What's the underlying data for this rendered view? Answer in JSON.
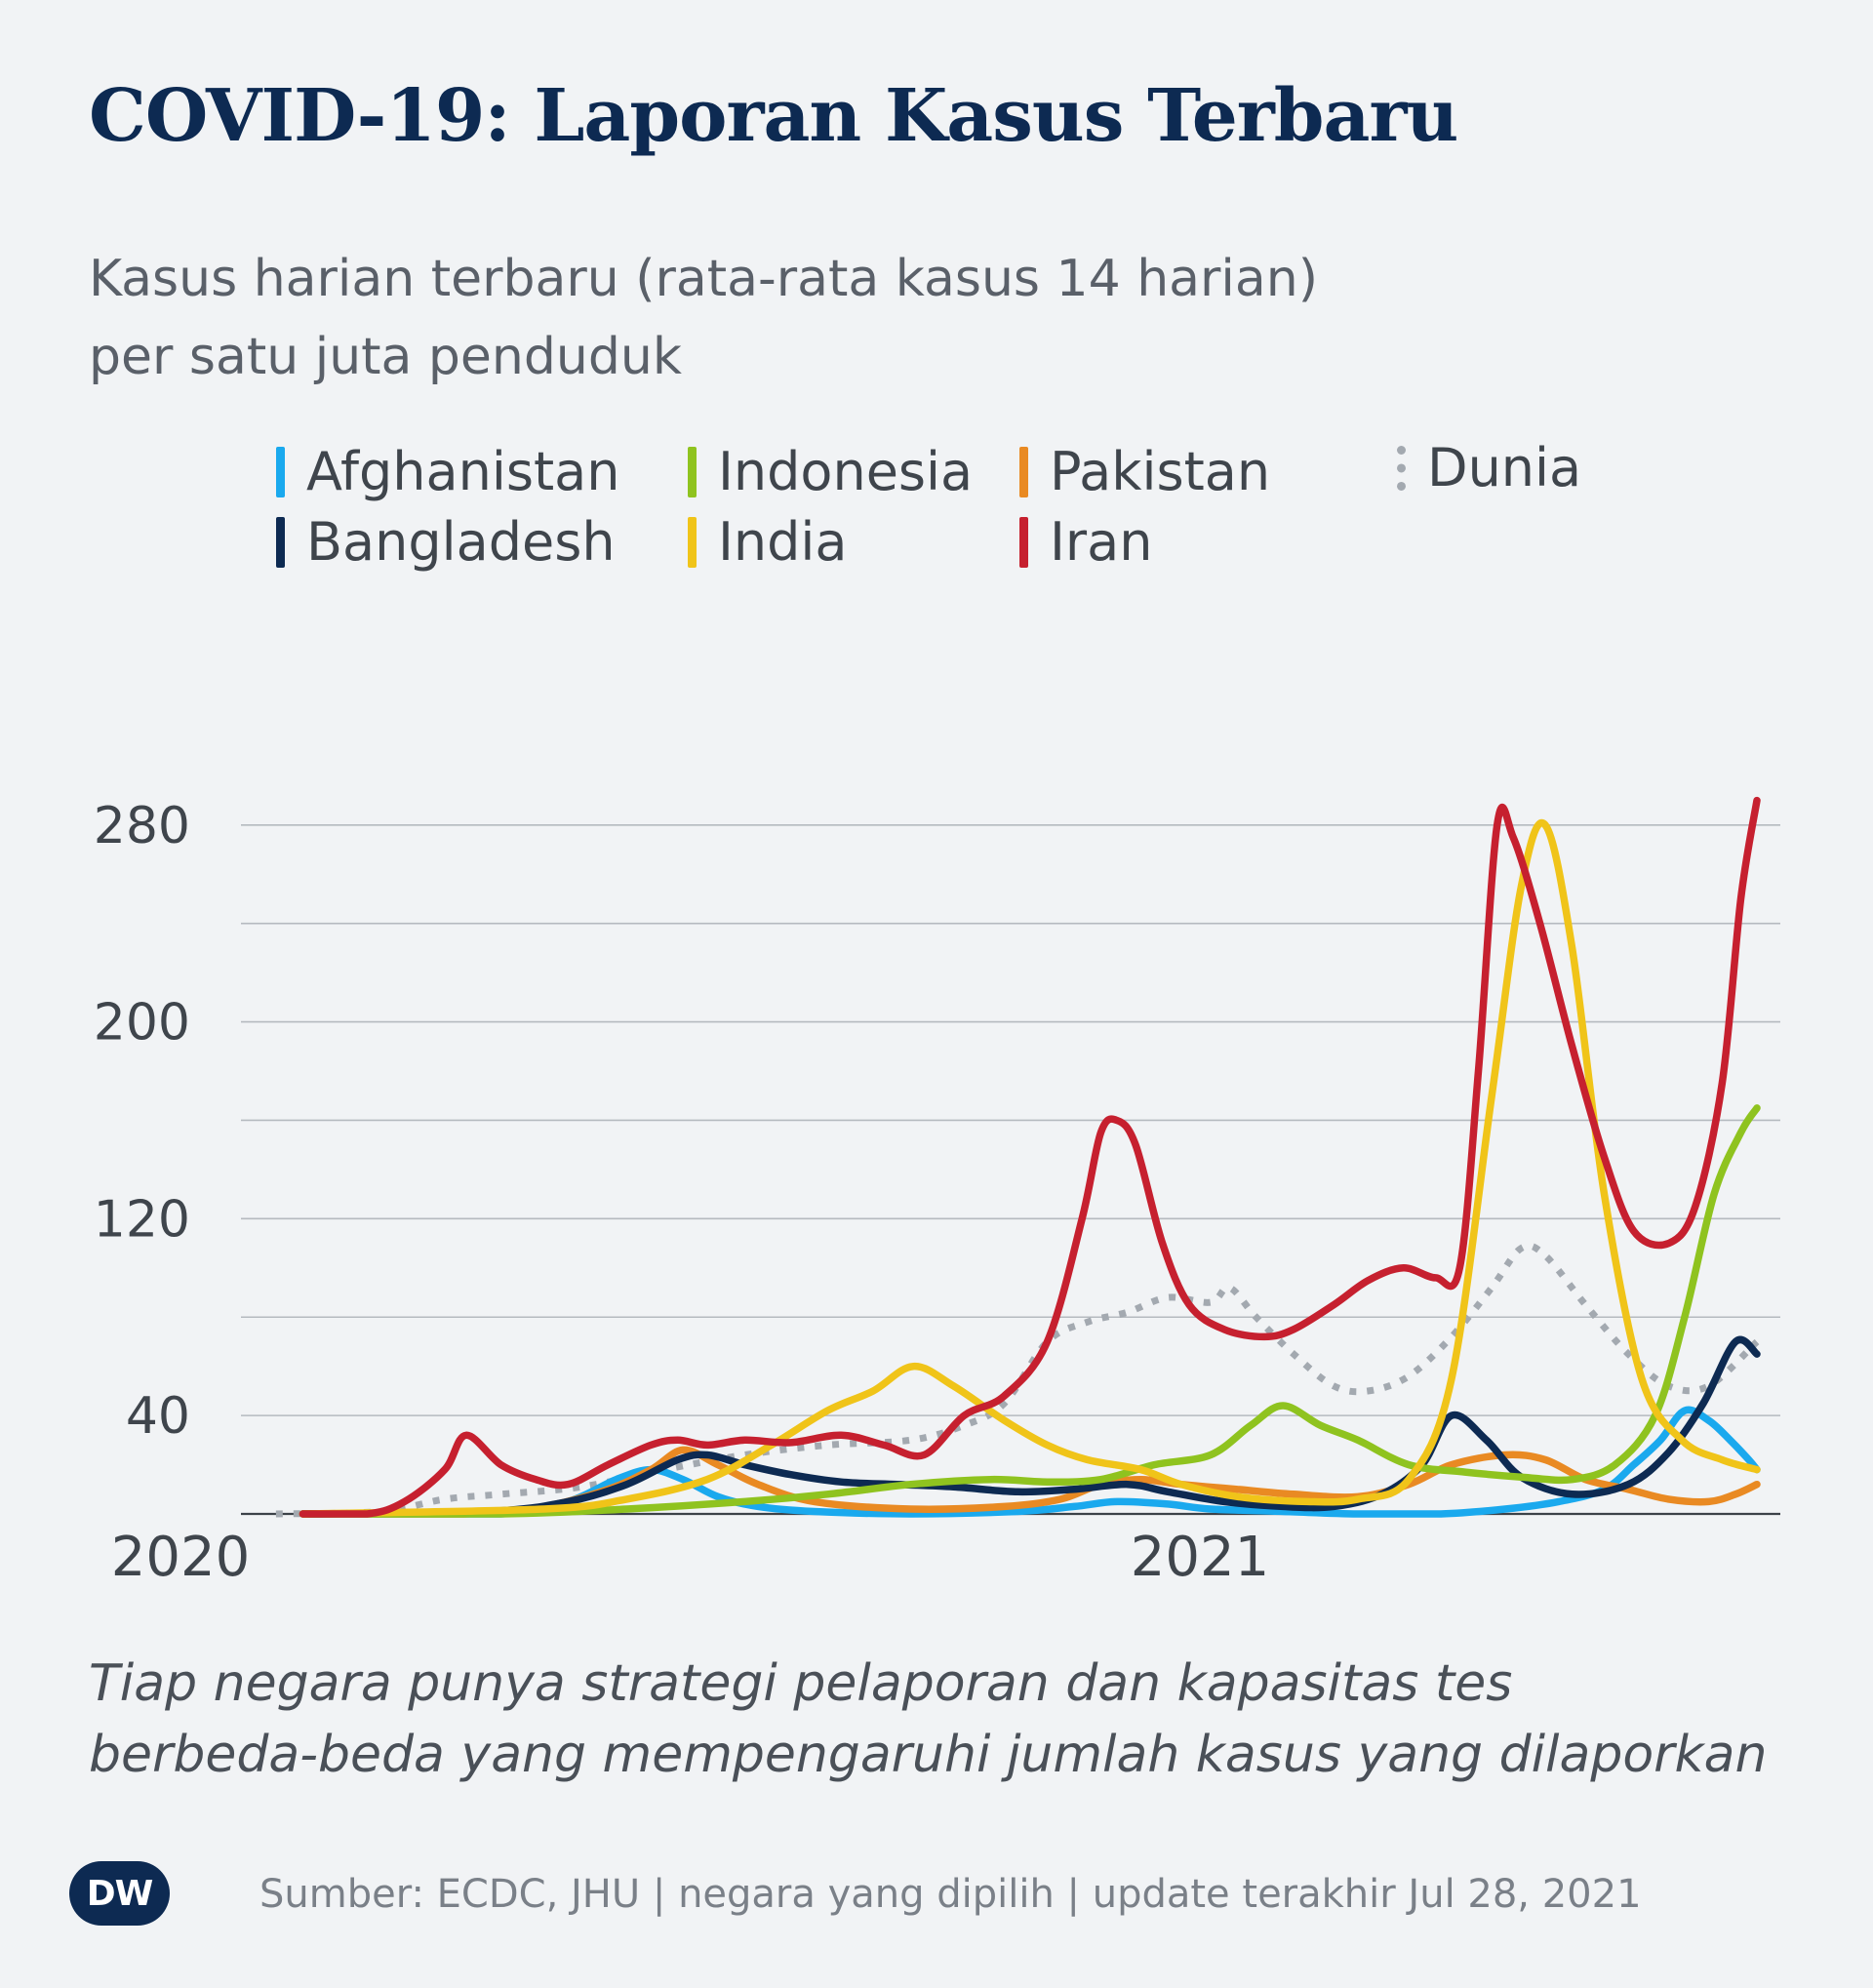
{
  "title": "COVID-19: Laporan Kasus Terbaru",
  "subtitle_line1": "Kasus harian terbaru (rata-rata kasus 14 harian)",
  "subtitle_line2": "per satu juta penduduk",
  "note_line1": "Tiap negara punya strategi pelaporan dan kapasitas tes",
  "note_line2": "berbeda-beda yang mempengaruhi jumlah kasus yang dilaporkan",
  "source": "Sumber: ECDC, JHU | negara yang dipilih | update terakhir Jul 28, 2021",
  "logo_text": "DW",
  "chart_data": {
    "type": "line",
    "x_ticks": [
      {
        "label": "2020",
        "date": "2020-01-01"
      },
      {
        "label": "2021",
        "date": "2021-01-01"
      }
    ],
    "y_ticks": [
      40,
      120,
      200,
      280
    ],
    "ylim": [
      0,
      300
    ],
    "grid": true,
    "legend": "top",
    "series": [
      {
        "name": "Afghanistan",
        "color": "#1aa9ee",
        "dash": false,
        "points": [
          [
            "2020-02-01",
            0
          ],
          [
            "2020-04-15",
            0
          ],
          [
            "2020-05-10",
            5
          ],
          [
            "2020-05-28",
            14
          ],
          [
            "2020-06-10",
            18
          ],
          [
            "2020-06-22",
            14
          ],
          [
            "2020-07-05",
            7
          ],
          [
            "2020-07-20",
            3
          ],
          [
            "2020-08-10",
            1
          ],
          [
            "2020-09-15",
            0
          ],
          [
            "2020-10-25",
            1
          ],
          [
            "2020-11-15",
            3
          ],
          [
            "2020-12-01",
            5
          ],
          [
            "2020-12-20",
            4
          ],
          [
            "2021-01-05",
            2
          ],
          [
            "2021-02-01",
            1
          ],
          [
            "2021-03-01",
            0
          ],
          [
            "2021-04-01",
            0
          ],
          [
            "2021-04-25",
            2
          ],
          [
            "2021-05-15",
            5
          ],
          [
            "2021-06-01",
            10
          ],
          [
            "2021-06-12",
            20
          ],
          [
            "2021-06-22",
            30
          ],
          [
            "2021-07-01",
            42
          ],
          [
            "2021-07-10",
            38
          ],
          [
            "2021-07-18",
            30
          ],
          [
            "2021-07-25",
            22
          ],
          [
            "2021-07-28",
            18
          ]
        ]
      },
      {
        "name": "Bangladesh",
        "color": "#0d2a52",
        "dash": false,
        "points": [
          [
            "2020-02-01",
            0
          ],
          [
            "2020-04-10",
            1
          ],
          [
            "2020-05-10",
            5
          ],
          [
            "2020-06-01",
            12
          ],
          [
            "2020-06-20",
            22
          ],
          [
            "2020-07-01",
            24
          ],
          [
            "2020-07-15",
            20
          ],
          [
            "2020-08-01",
            16
          ],
          [
            "2020-08-20",
            13
          ],
          [
            "2020-09-10",
            12
          ],
          [
            "2020-10-01",
            11
          ],
          [
            "2020-10-25",
            9
          ],
          [
            "2020-11-15",
            10
          ],
          [
            "2020-12-05",
            12
          ],
          [
            "2020-12-20",
            9
          ],
          [
            "2021-01-10",
            5
          ],
          [
            "2021-02-01",
            3
          ],
          [
            "2021-02-20",
            3
          ],
          [
            "2021-03-10",
            8
          ],
          [
            "2021-03-25",
            20
          ],
          [
            "2021-04-05",
            40
          ],
          [
            "2021-04-18",
            30
          ],
          [
            "2021-05-01",
            15
          ],
          [
            "2021-05-20",
            8
          ],
          [
            "2021-06-10",
            12
          ],
          [
            "2021-06-25",
            25
          ],
          [
            "2021-07-08",
            45
          ],
          [
            "2021-07-20",
            70
          ],
          [
            "2021-07-28",
            65
          ]
        ]
      },
      {
        "name": "Indonesia",
        "color": "#8fc31f",
        "dash": false,
        "points": [
          [
            "2020-02-01",
            0
          ],
          [
            "2020-04-15",
            0
          ],
          [
            "2020-06-01",
            2
          ],
          [
            "2020-07-15",
            5
          ],
          [
            "2020-08-15",
            8
          ],
          [
            "2020-09-15",
            12
          ],
          [
            "2020-10-15",
            14
          ],
          [
            "2020-11-05",
            13
          ],
          [
            "2020-11-25",
            14
          ],
          [
            "2020-12-15",
            20
          ],
          [
            "2021-01-05",
            24
          ],
          [
            "2021-01-20",
            36
          ],
          [
            "2021-02-01",
            44
          ],
          [
            "2021-02-15",
            36
          ],
          [
            "2021-03-01",
            30
          ],
          [
            "2021-03-20",
            20
          ],
          [
            "2021-04-10",
            17
          ],
          [
            "2021-05-01",
            15
          ],
          [
            "2021-05-20",
            14
          ],
          [
            "2021-06-05",
            20
          ],
          [
            "2021-06-20",
            40
          ],
          [
            "2021-07-01",
            80
          ],
          [
            "2021-07-12",
            130
          ],
          [
            "2021-07-22",
            155
          ],
          [
            "2021-07-28",
            165
          ]
        ]
      },
      {
        "name": "India",
        "color": "#f0c419",
        "dash": false,
        "points": [
          [
            "2020-02-01",
            0
          ],
          [
            "2020-05-01",
            2
          ],
          [
            "2020-06-01",
            6
          ],
          [
            "2020-07-01",
            14
          ],
          [
            "2020-07-25",
            28
          ],
          [
            "2020-08-15",
            42
          ],
          [
            "2020-09-01",
            50
          ],
          [
            "2020-09-16",
            60
          ],
          [
            "2020-10-01",
            52
          ],
          [
            "2020-10-20",
            38
          ],
          [
            "2020-11-05",
            28
          ],
          [
            "2020-11-20",
            22
          ],
          [
            "2020-12-10",
            18
          ],
          [
            "2020-12-25",
            12
          ],
          [
            "2021-01-15",
            7
          ],
          [
            "2021-02-10",
            5
          ],
          [
            "2021-03-01",
            6
          ],
          [
            "2021-03-20",
            14
          ],
          [
            "2021-04-05",
            55
          ],
          [
            "2021-04-20",
            170
          ],
          [
            "2021-05-01",
            255
          ],
          [
            "2021-05-10",
            280
          ],
          [
            "2021-05-20",
            230
          ],
          [
            "2021-06-01",
            130
          ],
          [
            "2021-06-15",
            55
          ],
          [
            "2021-06-30",
            30
          ],
          [
            "2021-07-15",
            22
          ],
          [
            "2021-07-28",
            18
          ]
        ]
      },
      {
        "name": "Pakistan",
        "color": "#e98a23",
        "dash": false,
        "points": [
          [
            "2020-02-01",
            0
          ],
          [
            "2020-04-01",
            0
          ],
          [
            "2020-05-01",
            3
          ],
          [
            "2020-05-25",
            10
          ],
          [
            "2020-06-10",
            18
          ],
          [
            "2020-06-22",
            26
          ],
          [
            "2020-07-05",
            20
          ],
          [
            "2020-07-20",
            12
          ],
          [
            "2020-08-10",
            5
          ],
          [
            "2020-09-15",
            2
          ],
          [
            "2020-10-20",
            3
          ],
          [
            "2020-11-10",
            6
          ],
          [
            "2020-11-25",
            12
          ],
          [
            "2020-12-10",
            14
          ],
          [
            "2020-12-25",
            12
          ],
          [
            "2021-01-15",
            10
          ],
          [
            "2021-02-05",
            8
          ],
          [
            "2021-03-01",
            7
          ],
          [
            "2021-03-20",
            12
          ],
          [
            "2021-04-05",
            20
          ],
          [
            "2021-04-25",
            24
          ],
          [
            "2021-05-10",
            22
          ],
          [
            "2021-05-25",
            14
          ],
          [
            "2021-06-10",
            10
          ],
          [
            "2021-06-25",
            6
          ],
          [
            "2021-07-10",
            5
          ],
          [
            "2021-07-20",
            8
          ],
          [
            "2021-07-28",
            12
          ]
        ]
      },
      {
        "name": "Iran",
        "color": "#c6202f",
        "dash": false,
        "points": [
          [
            "2020-02-01",
            0
          ],
          [
            "2020-02-25",
            0
          ],
          [
            "2020-03-10",
            5
          ],
          [
            "2020-03-25",
            18
          ],
          [
            "2020-04-02",
            32
          ],
          [
            "2020-04-15",
            20
          ],
          [
            "2020-04-28",
            14
          ],
          [
            "2020-05-10",
            12
          ],
          [
            "2020-05-25",
            20
          ],
          [
            "2020-06-10",
            28
          ],
          [
            "2020-06-20",
            30
          ],
          [
            "2020-07-01",
            28
          ],
          [
            "2020-07-15",
            30
          ],
          [
            "2020-08-01",
            29
          ],
          [
            "2020-08-20",
            32
          ],
          [
            "2020-09-05",
            28
          ],
          [
            "2020-09-20",
            24
          ],
          [
            "2020-10-05",
            40
          ],
          [
            "2020-10-20",
            48
          ],
          [
            "2020-11-05",
            70
          ],
          [
            "2020-11-18",
            120
          ],
          [
            "2020-11-25",
            155
          ],
          [
            "2020-12-01",
            160
          ],
          [
            "2020-12-08",
            150
          ],
          [
            "2020-12-18",
            110
          ],
          [
            "2020-12-28",
            85
          ],
          [
            "2021-01-10",
            75
          ],
          [
            "2021-01-25",
            72
          ],
          [
            "2021-02-05",
            75
          ],
          [
            "2021-02-20",
            85
          ],
          [
            "2021-03-05",
            95
          ],
          [
            "2021-03-18",
            100
          ],
          [
            "2021-03-30",
            96
          ],
          [
            "2021-04-08",
            100
          ],
          [
            "2021-04-15",
            180
          ],
          [
            "2021-04-22",
            280
          ],
          [
            "2021-04-28",
            275
          ],
          [
            "2021-05-08",
            240
          ],
          [
            "2021-05-20",
            190
          ],
          [
            "2021-06-01",
            145
          ],
          [
            "2021-06-12",
            115
          ],
          [
            "2021-06-25",
            110
          ],
          [
            "2021-07-05",
            125
          ],
          [
            "2021-07-15",
            175
          ],
          [
            "2021-07-22",
            250
          ],
          [
            "2021-07-28",
            290
          ]
        ]
      },
      {
        "name": "Dunia",
        "color": "#a3a9b0",
        "dash": true,
        "points": [
          [
            "2020-01-22",
            0
          ],
          [
            "2020-03-01",
            1
          ],
          [
            "2020-03-25",
            6
          ],
          [
            "2020-04-15",
            8
          ],
          [
            "2020-05-15",
            11
          ],
          [
            "2020-06-15",
            18
          ],
          [
            "2020-07-15",
            24
          ],
          [
            "2020-08-15",
            28
          ],
          [
            "2020-09-15",
            30
          ],
          [
            "2020-10-05",
            36
          ],
          [
            "2020-10-20",
            45
          ],
          [
            "2020-11-05",
            70
          ],
          [
            "2020-11-20",
            78
          ],
          [
            "2020-12-05",
            82
          ],
          [
            "2020-12-20",
            88
          ],
          [
            "2021-01-05",
            86
          ],
          [
            "2021-01-12",
            92
          ],
          [
            "2021-01-22",
            80
          ],
          [
            "2021-02-05",
            65
          ],
          [
            "2021-02-20",
            52
          ],
          [
            "2021-03-05",
            50
          ],
          [
            "2021-03-20",
            56
          ],
          [
            "2021-04-05",
            72
          ],
          [
            "2021-04-20",
            92
          ],
          [
            "2021-05-01",
            108
          ],
          [
            "2021-05-10",
            105
          ],
          [
            "2021-05-25",
            85
          ],
          [
            "2021-06-10",
            65
          ],
          [
            "2021-06-25",
            52
          ],
          [
            "2021-07-10",
            52
          ],
          [
            "2021-07-28",
            70
          ]
        ]
      }
    ]
  }
}
